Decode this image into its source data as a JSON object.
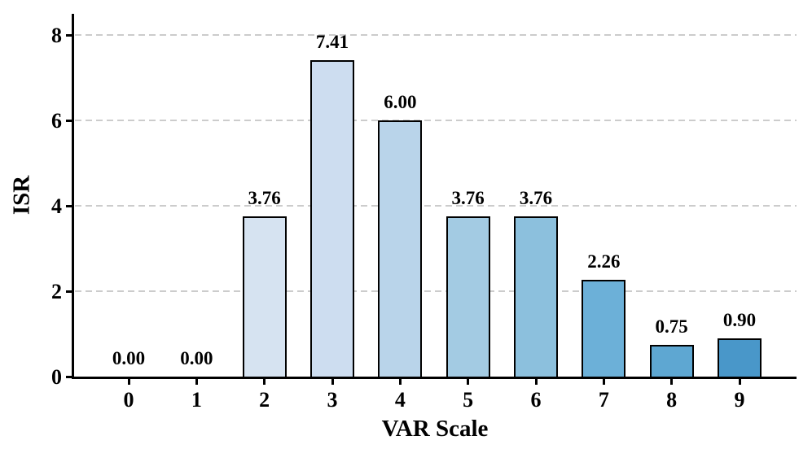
{
  "figure": {
    "background": "#ffffff"
  },
  "chart_data": {
    "type": "bar",
    "title": "",
    "xlabel": "VAR Scale",
    "ylabel": "ISR",
    "categories": [
      "0",
      "1",
      "2",
      "3",
      "4",
      "5",
      "6",
      "7",
      "8",
      "9"
    ],
    "values": [
      0.0,
      0.0,
      3.76,
      7.41,
      6.0,
      3.76,
      3.76,
      2.26,
      0.75,
      0.9
    ],
    "value_labels": [
      "0.00",
      "0.00",
      "3.76",
      "7.41",
      "6.00",
      "3.76",
      "3.76",
      "2.26",
      "0.75",
      "0.90"
    ],
    "bar_colors": [
      "#f4f9fe",
      "#e2eef8",
      "#d6e3f1",
      "#cdddf0",
      "#b9d4ea",
      "#a3cbe3",
      "#8cc0dd",
      "#6cb0d8",
      "#5ea7d2",
      "#4997c9"
    ],
    "bar_edge_color": "#000000",
    "yticks": [
      "0",
      "2",
      "4",
      "6",
      "8"
    ],
    "ytick_values": [
      0,
      2,
      4,
      6,
      8
    ],
    "ylim": [
      0,
      8.5
    ],
    "grid": {
      "axis": "y",
      "style": "dashed",
      "color": "#cccccc",
      "on": true
    },
    "legend_position": "none",
    "label_color": "#000000",
    "axis_color": "#000000"
  }
}
